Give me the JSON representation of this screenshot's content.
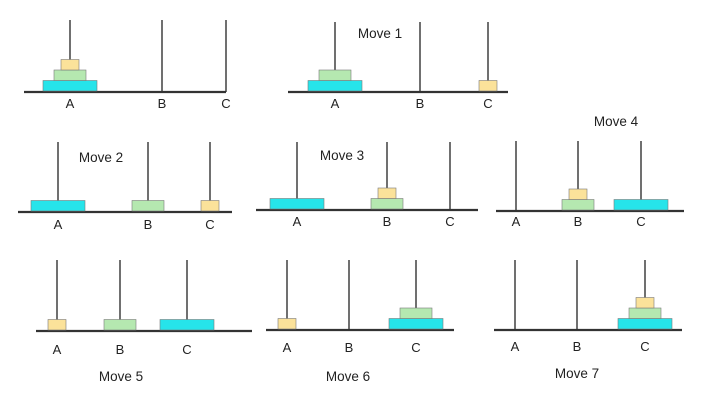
{
  "diagram": {
    "subject": "Tower of Hanoi with 3 disks",
    "disk_colors": {
      "small": "#fbe29a",
      "medium": "#b5e8b0",
      "large": "#26e4ea"
    },
    "disk_border": "#7a7a7a",
    "rod_color": "#333333",
    "base_color": "#333333",
    "panels": [
      {
        "id": "start",
        "title": "",
        "pegs": [
          {
            "label": "A",
            "disks": [
              "large",
              "medium",
              "small"
            ]
          },
          {
            "label": "B",
            "disks": []
          },
          {
            "label": "C",
            "disks": []
          }
        ]
      },
      {
        "id": "move-1",
        "title": "Move 1",
        "pegs": [
          {
            "label": "A",
            "disks": [
              "large",
              "medium"
            ]
          },
          {
            "label": "B",
            "disks": []
          },
          {
            "label": "C",
            "disks": [
              "small"
            ]
          }
        ]
      },
      {
        "id": "move-2",
        "title": "Move 2",
        "pegs": [
          {
            "label": "A",
            "disks": [
              "large"
            ]
          },
          {
            "label": "B",
            "disks": [
              "medium"
            ]
          },
          {
            "label": "C",
            "disks": [
              "small"
            ]
          }
        ]
      },
      {
        "id": "move-3",
        "title": "Move 3",
        "pegs": [
          {
            "label": "A",
            "disks": [
              "large"
            ]
          },
          {
            "label": "B",
            "disks": [
              "medium",
              "small"
            ]
          },
          {
            "label": "C",
            "disks": []
          }
        ]
      },
      {
        "id": "move-4",
        "title": "Move 4",
        "pegs": [
          {
            "label": "A",
            "disks": []
          },
          {
            "label": "B",
            "disks": [
              "medium",
              "small"
            ]
          },
          {
            "label": "C",
            "disks": [
              "large"
            ]
          }
        ]
      },
      {
        "id": "move-5",
        "title": "Move 5",
        "pegs": [
          {
            "label": "A",
            "disks": [
              "small"
            ]
          },
          {
            "label": "B",
            "disks": [
              "medium"
            ]
          },
          {
            "label": "C",
            "disks": [
              "large"
            ]
          }
        ]
      },
      {
        "id": "move-6",
        "title": "Move 6",
        "pegs": [
          {
            "label": "A",
            "disks": [
              "small"
            ]
          },
          {
            "label": "B",
            "disks": []
          },
          {
            "label": "C",
            "disks": [
              "large",
              "medium"
            ]
          }
        ]
      },
      {
        "id": "move-7",
        "title": "Move 7",
        "pegs": [
          {
            "label": "A",
            "disks": []
          },
          {
            "label": "B",
            "disks": []
          },
          {
            "label": "C",
            "disks": [
              "large",
              "medium",
              "small"
            ]
          }
        ]
      }
    ]
  }
}
